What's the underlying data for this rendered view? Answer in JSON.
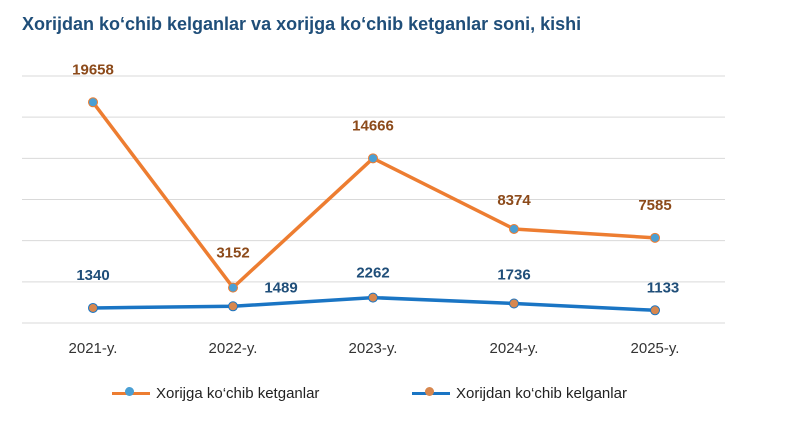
{
  "chart_data": {
    "type": "line",
    "title": "Xorijdan ko‘chib kelganlar va xorijga ko‘chib ketganlar soni, kishi",
    "categories": [
      "2021-y.",
      "2022-y.",
      "2023-y.",
      "2024-y.",
      "2025-y."
    ],
    "ylim": [
      0,
      22000
    ],
    "grid": true,
    "legend_position": "bottom",
    "series": [
      {
        "name": "Xorijga ko‘chib ketganlar",
        "values": [
          19658,
          3152,
          14666,
          8374,
          7585
        ],
        "labels": [
          "19658",
          "3152",
          "14666",
          "8374",
          "7585"
        ],
        "color": "#ed7d31",
        "marker_color": "#4a9fd4",
        "label_color": "#8c4a1a"
      },
      {
        "name": "Xorijdan ko‘chib kelganlar",
        "values": [
          1340,
          1489,
          2262,
          1736,
          1133
        ],
        "labels": [
          "1340",
          "1489",
          "2262",
          "1736",
          "1133"
        ],
        "color": "#1a75c4",
        "marker_color": "#d7874e",
        "label_color": "#1f4e79"
      }
    ]
  }
}
